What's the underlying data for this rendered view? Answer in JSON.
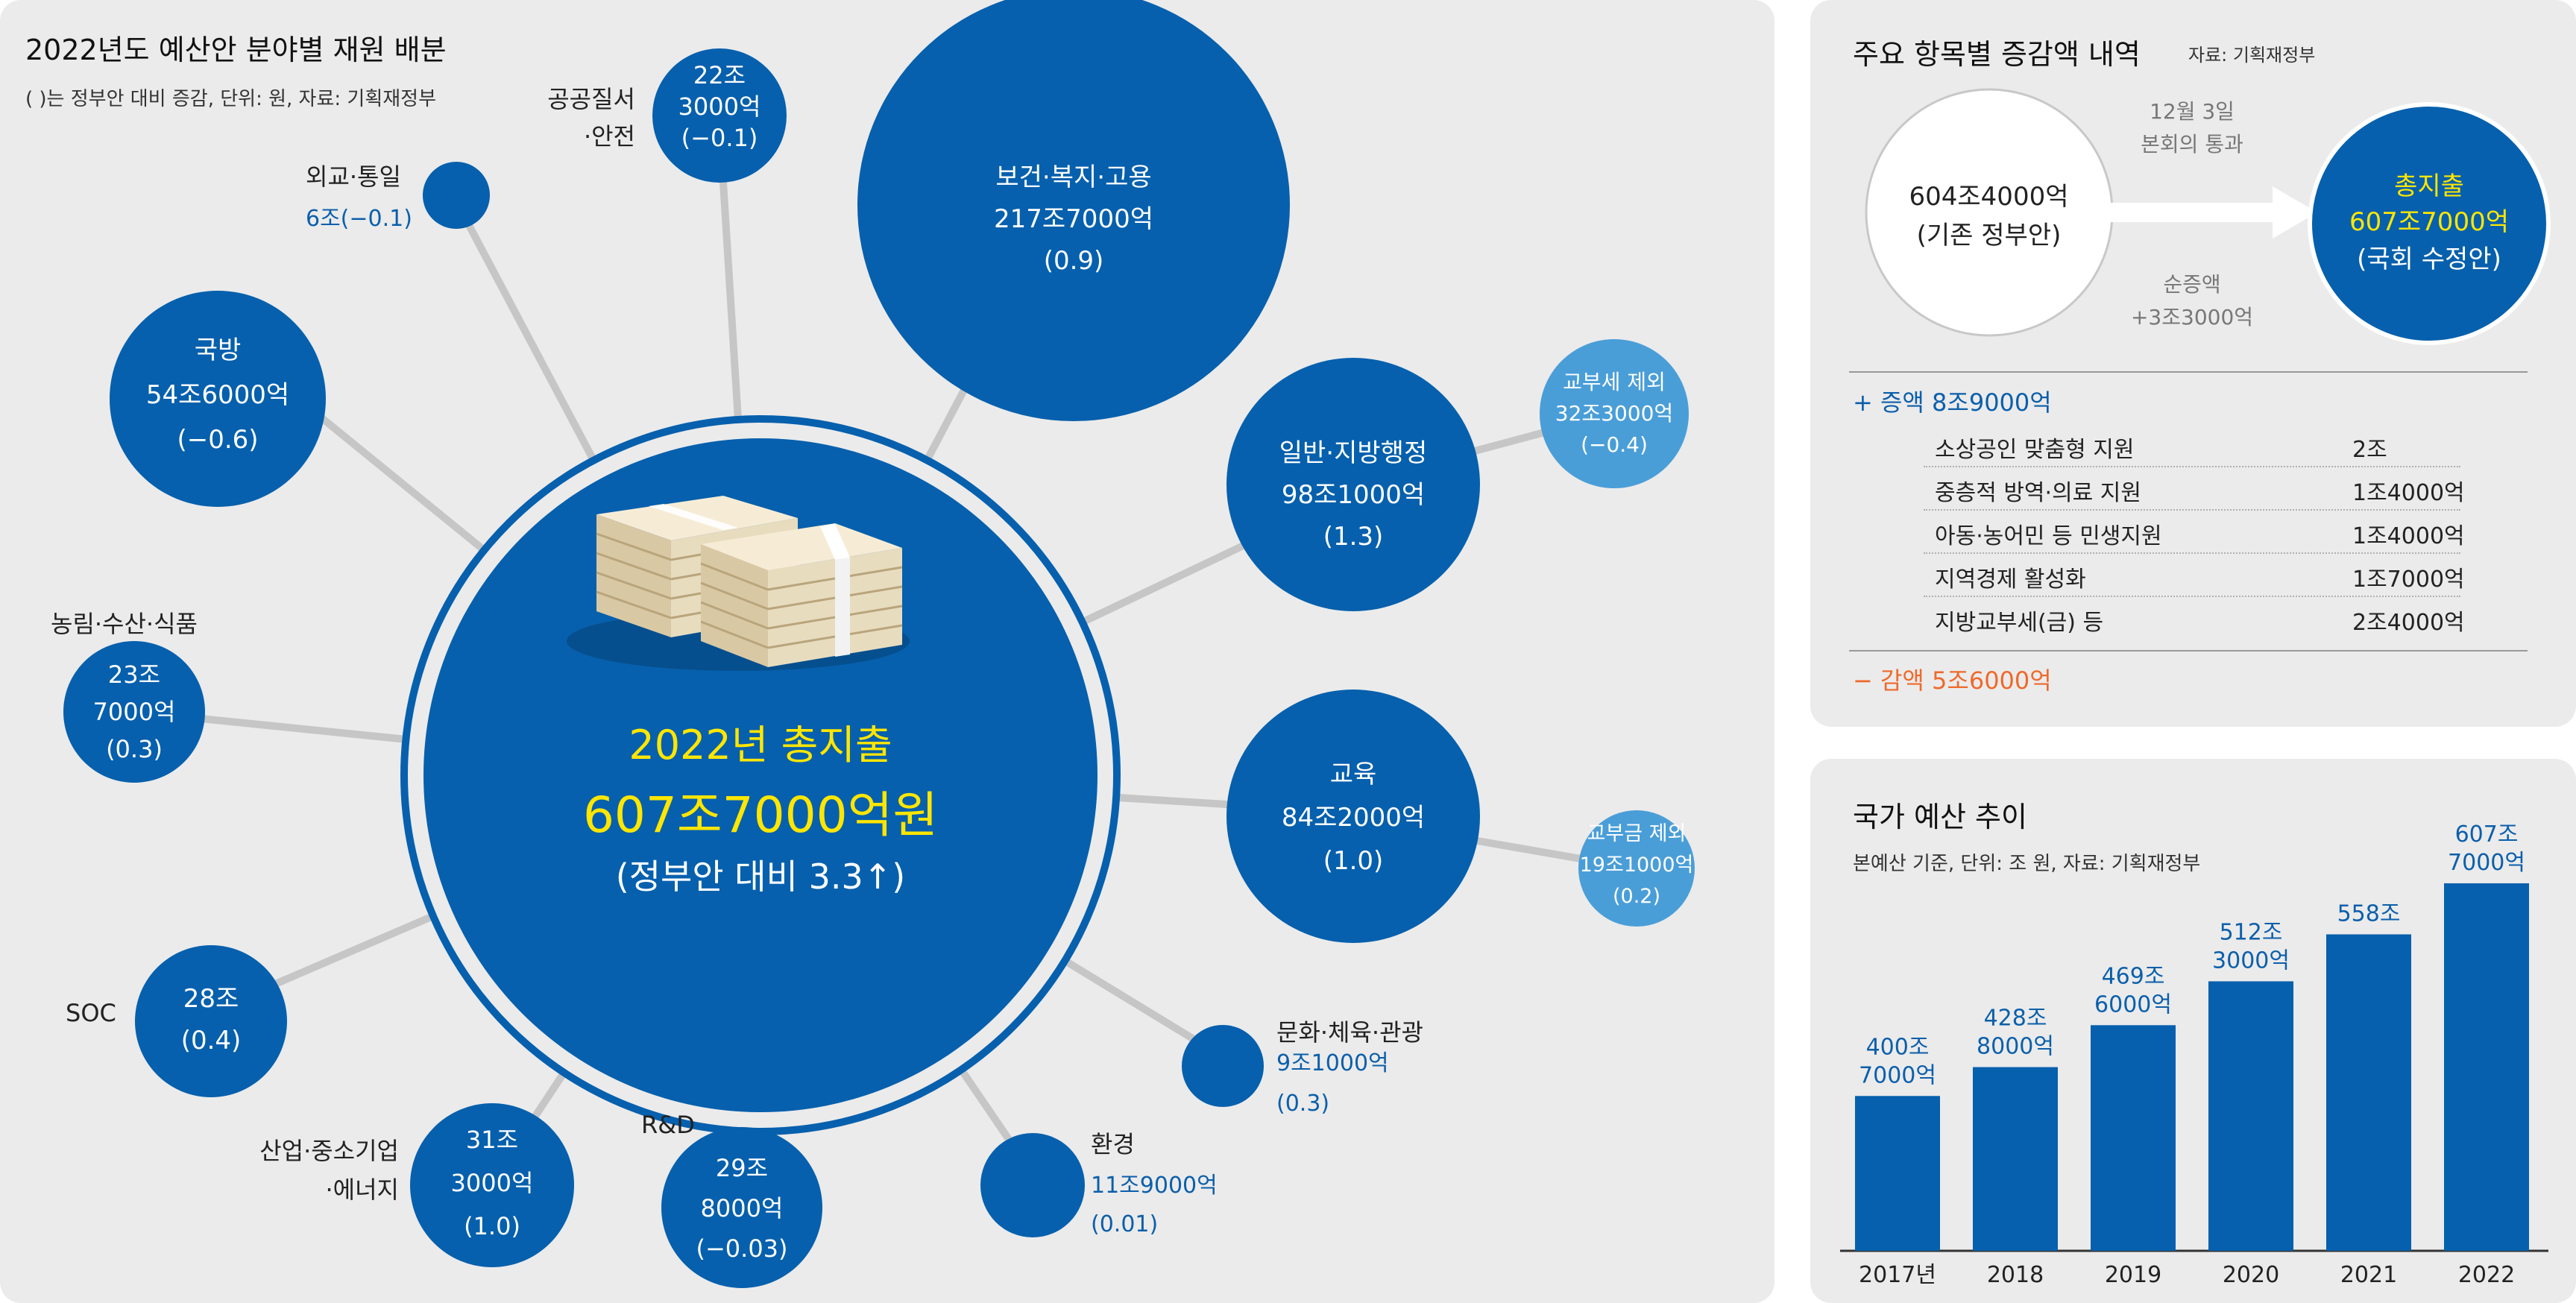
{
  "left": {
    "title": "2022년도 예산안 분야별 재원 배분",
    "subtitle": "( )는 정부안 대비 증감, 단위: 원, 자료: 기획재정부",
    "center": {
      "line1": "2022년 총지출",
      "line2": "607조7000억원",
      "line3": "(정부안 대비 3.3↑)"
    },
    "bubbles": {
      "public_order": {
        "label": "공공질서\n·안전",
        "value": "22조\n3000억\n(−0.1)"
      },
      "foreign": {
        "label": "외교·통일",
        "value": "6조(−0.1)"
      },
      "defense": {
        "value": "국방\n54조6000억\n(−0.6)"
      },
      "welfare": {
        "value": "보건·복지·고용\n217조7000억\n(0.9)"
      },
      "admin": {
        "value": "일반·지방행정\n98조1000억\n(1.3)"
      },
      "admin_excl": {
        "value": "교부세 제외\n32조3000억\n(−0.4)"
      },
      "education": {
        "value": "교육\n84조2000억\n(1.0)"
      },
      "edu_excl": {
        "value": "교부금 제외\n19조1000억\n(0.2)"
      },
      "agri": {
        "label": "농림·수산·식품",
        "value": "23조\n7000억\n(0.3)"
      },
      "soc": {
        "label": "SOC",
        "value": "28조\n(0.4)"
      },
      "industry": {
        "label": "산업·중소기업\n·에너지",
        "value": "31조\n3000억\n(1.0)"
      },
      "rnd": {
        "label": "R&D",
        "value": "29조\n8000억\n(−0.03)"
      },
      "env": {
        "label": "환경",
        "value": "11조9000억\n(0.01)"
      },
      "culture": {
        "label": "문화·체육·관광",
        "value": "9조1000억\n(0.3)"
      }
    }
  },
  "changes": {
    "title": "주요 항목별 증감액 내역",
    "source": "자료: 기획재정부",
    "original": "604조4000억\n(기존 정부안)",
    "arrow_top": "12월 3일\n본회의 통과",
    "arrow_bottom": "순증액\n+3조3000억",
    "final_label": "총지출",
    "final_value": "607조7000억",
    "final_sub": "(국회 수정안)",
    "increase_header": "+ 증액 8조9000억",
    "increase_items": [
      {
        "name": "소상공인 맞춤형 지원",
        "amount": "2조"
      },
      {
        "name": "중층적 방역·의료 지원",
        "amount": "1조4000억"
      },
      {
        "name": "아동·농어민 등 민생지원",
        "amount": "1조4000억"
      },
      {
        "name": "지역경제 활성화",
        "amount": "1조7000억"
      },
      {
        "name": "지방교부세(금) 등",
        "amount": "2조4000억"
      }
    ],
    "decrease_header": "− 감액 5조6000억"
  },
  "trend": {
    "title": "국가 예산 추이",
    "subtitle": "본예산 기준, 단위: 조 원, 자료: 기획재정부"
  },
  "colors": {
    "bubble": "#0660ad",
    "light_bubble": "#4a9ed8",
    "bar": "#0660ad",
    "accent_yellow": "#ffe600",
    "increase": "#0b5fab",
    "decrease": "#ee6a2b",
    "panel": "#ebebeb"
  },
  "chart_data": {
    "type": "bar",
    "categories": [
      "2017년",
      "2018",
      "2019",
      "2020",
      "2021",
      "2022"
    ],
    "values": [
      400.7,
      428.8,
      469.6,
      512.3,
      558.0,
      607.7
    ],
    "data_labels": [
      "400조\n7000억",
      "428조\n8000억",
      "469조\n6000억",
      "512조\n3000억",
      "558조",
      "607조\n7000억"
    ],
    "ylim": [
      250,
      620
    ]
  }
}
